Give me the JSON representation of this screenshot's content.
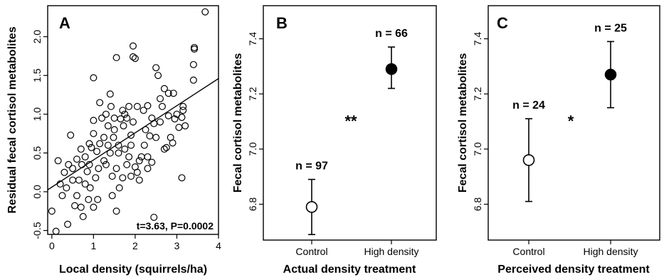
{
  "chart_data": [
    {
      "type": "scatter",
      "panel_label": "A",
      "xlabel": "Local density (squirrels/ha)",
      "ylabel": "Residual fecal cortisol metabolites",
      "xlim": [
        -0.1,
        4.0
      ],
      "ylim": [
        -0.55,
        2.4
      ],
      "xticks": [
        "0",
        "1",
        "2",
        "3",
        "4"
      ],
      "yticks": [
        "-0.5",
        "0.0",
        "0.5",
        "1.0",
        "1.5",
        "2.0"
      ],
      "annotation": "t=3.63, P=0.0002",
      "regression_line": {
        "intercept": 0.06,
        "slope": 0.35
      },
      "points": [
        [
          3.68,
          2.32
        ],
        [
          3.42,
          1.86
        ],
        [
          3.42,
          1.84
        ],
        [
          3.4,
          1.64
        ],
        [
          3.4,
          1.44
        ],
        [
          3.15,
          1.1
        ],
        [
          3.15,
          1.05
        ],
        [
          3.12,
          0.96
        ],
        [
          3.05,
          0.83
        ],
        [
          3.0,
          1.0
        ],
        [
          2.95,
          0.94
        ],
        [
          2.92,
          1.27
        ],
        [
          2.9,
          0.63
        ],
        [
          2.8,
          1.27
        ],
        [
          2.8,
          0.98
        ],
        [
          2.75,
          0.57
        ],
        [
          2.7,
          1.33
        ],
        [
          2.7,
          0.55
        ],
        [
          2.65,
          1.1
        ],
        [
          2.6,
          1.2
        ],
        [
          2.55,
          1.5
        ],
        [
          2.5,
          1.6
        ],
        [
          2.5,
          0.7
        ],
        [
          2.45,
          0.88
        ],
        [
          2.4,
          0.38
        ],
        [
          2.35,
          0.72
        ],
        [
          2.3,
          1.11
        ],
        [
          2.3,
          0.45
        ],
        [
          2.25,
          0.8
        ],
        [
          2.2,
          1.05
        ],
        [
          2.15,
          0.45
        ],
        [
          2.1,
          0.4
        ],
        [
          2.05,
          0.25
        ],
        [
          2.0,
          0.32
        ],
        [
          1.95,
          1.88
        ],
        [
          1.95,
          1.74
        ],
        [
          1.95,
          0.9
        ],
        [
          1.9,
          0.73
        ],
        [
          1.9,
          0.6
        ],
        [
          1.85,
          1.1
        ],
        [
          1.8,
          0.95
        ],
        [
          1.8,
          0.35
        ],
        [
          1.75,
          0.55
        ],
        [
          1.72,
          0.85
        ],
        [
          1.7,
          0.18
        ],
        [
          1.65,
          0.94
        ],
        [
          1.62,
          0.05
        ],
        [
          1.6,
          0.6
        ],
        [
          1.55,
          1.73
        ],
        [
          1.55,
          0.3
        ],
        [
          1.5,
          0.95
        ],
        [
          1.48,
          0.7
        ],
        [
          1.45,
          0.2
        ],
        [
          1.42,
          1.1
        ],
        [
          1.4,
          1.26
        ],
        [
          1.4,
          0.5
        ],
        [
          1.35,
          0.85
        ],
        [
          1.3,
          0.35
        ],
        [
          1.25,
          0.7
        ],
        [
          1.2,
          0.95
        ],
        [
          1.15,
          1.15
        ],
        [
          1.12,
          0.3
        ],
        [
          1.08,
          0.52
        ],
        [
          1.05,
          0.18
        ],
        [
          1.0,
          1.47
        ],
        [
          1.0,
          0.92
        ],
        [
          1.0,
          0.75
        ],
        [
          0.95,
          0.57
        ],
        [
          0.92,
          0.05
        ],
        [
          0.9,
          0.35
        ],
        [
          0.88,
          -0.1
        ],
        [
          0.85,
          0.26
        ],
        [
          0.8,
          0.45
        ],
        [
          0.75,
          -0.32
        ],
        [
          0.72,
          0.35
        ],
        [
          0.7,
          -0.2
        ],
        [
          0.65,
          0.15
        ],
        [
          0.6,
          0.42
        ],
        [
          0.55,
          -0.18
        ],
        [
          0.5,
          0.3
        ],
        [
          0.45,
          0.73
        ],
        [
          0.4,
          0.35
        ],
        [
          0.38,
          -0.42
        ],
        [
          0.35,
          0.05
        ],
        [
          0.3,
          0.25
        ],
        [
          0.25,
          -0.05
        ],
        [
          0.2,
          0.1
        ],
        [
          0.15,
          0.4
        ],
        [
          0.1,
          -0.51
        ],
        [
          0.0,
          -0.25
        ],
        [
          2.45,
          -0.33
        ],
        [
          3.12,
          0.18
        ],
        [
          2.0,
          1.72
        ],
        [
          1.3,
          1.0
        ],
        [
          1.7,
          1.05
        ],
        [
          2.85,
          0.7
        ],
        [
          2.22,
          0.6
        ],
        [
          1.55,
          -0.25
        ],
        [
          1.1,
          -0.1
        ],
        [
          0.6,
          -0.05
        ],
        [
          0.9,
          0.62
        ],
        [
          1.35,
          0.6
        ],
        [
          1.85,
          0.45
        ],
        [
          2.6,
          0.9
        ],
        [
          3.2,
          0.85
        ],
        [
          1.0,
          -0.2
        ],
        [
          1.45,
          -0.05
        ],
        [
          2.1,
          0.15
        ],
        [
          0.5,
          0.15
        ],
        [
          1.25,
          0.4
        ],
        [
          1.6,
          0.5
        ],
        [
          1.9,
          0.2
        ],
        [
          2.3,
          0.3
        ],
        [
          1.15,
          0.62
        ],
        [
          1.5,
          0.8
        ],
        [
          1.75,
          1.0
        ],
        [
          2.05,
          1.1
        ],
        [
          2.4,
          0.95
        ],
        [
          0.8,
          0.1
        ],
        [
          0.7,
          0.55
        ]
      ]
    },
    {
      "type": "errorbar",
      "panel_label": "B",
      "xlabel": "Actual density treatment",
      "ylabel": "Fecal cortisol metabolites",
      "categories": [
        "Control",
        "High density"
      ],
      "ylim": [
        6.67,
        7.52
      ],
      "yticks": [
        "6.8",
        "7.0",
        "7.2",
        "7.4"
      ],
      "groups": [
        {
          "mean": 6.79,
          "lower": 6.69,
          "upper": 6.89,
          "n_label": "n = 97",
          "filled": false
        },
        {
          "mean": 7.29,
          "lower": 7.22,
          "upper": 7.37,
          "n_label": "n = 66",
          "filled": true
        }
      ],
      "significance": "**"
    },
    {
      "type": "errorbar",
      "panel_label": "C",
      "xlabel": "Perceived density treatment",
      "ylabel": "Fecal cortisol metabolites",
      "categories": [
        "Control",
        "High density"
      ],
      "ylim": [
        6.67,
        7.52
      ],
      "yticks": [
        "6.8",
        "7.0",
        "7.2",
        "7.4"
      ],
      "groups": [
        {
          "mean": 6.96,
          "lower": 6.81,
          "upper": 7.11,
          "n_label": "n = 24",
          "filled": false
        },
        {
          "mean": 7.27,
          "lower": 7.15,
          "upper": 7.39,
          "n_label": "n = 25",
          "filled": true
        }
      ],
      "significance": "*"
    }
  ]
}
